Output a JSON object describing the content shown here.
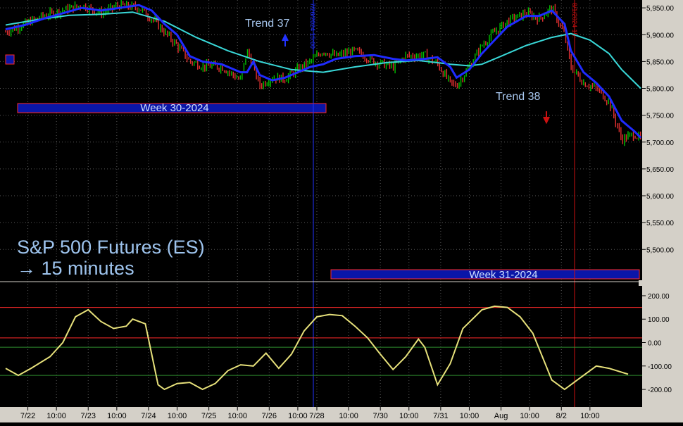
{
  "colors": {
    "background": "#000000",
    "grid": "#5a5a5a",
    "axis_panel": "#d4d0c8",
    "price_up": "#00c000",
    "price_down": "#e03030",
    "fast_ma": "#1f2bff",
    "slow_ma": "#39d8d8",
    "oscillator": "#e6e07a",
    "level_red": "#ff2a2a",
    "level_green": "#2e8b2e",
    "week_box_fill": "#0a16a8",
    "week_box_border": "#ff2a2a",
    "marker_blue": "#2233ff",
    "marker_red": "#cc1111",
    "title_text": "#9ec4ee",
    "annotation_text": "#a8c8f0"
  },
  "chart_data": [
    {
      "id": "price",
      "type": "line",
      "title": "S&P 500 Futures (ES)",
      "subtitle": "→ 15 minutes",
      "ylim": [
        5440,
        5962
      ],
      "yticks": [
        5500,
        5550,
        5600,
        5650,
        5700,
        5750,
        5800,
        5850,
        5900,
        5950
      ],
      "ytick_labels": [
        "5,500.00",
        "5,550.00",
        "5,600.00",
        "5,650.00",
        "5,700.00",
        "5,750.00",
        "5,800.00",
        "5,850.00",
        "5,900.00",
        "5,950.00"
      ],
      "xlim": [
        0,
        100
      ],
      "series": [
        {
          "key": "fast",
          "values": [
            [
              0,
              5910
            ],
            [
              3,
              5918
            ],
            [
              6,
              5930
            ],
            [
              9,
              5940
            ],
            [
              12,
              5950
            ],
            [
              15,
              5945
            ],
            [
              18,
              5950
            ],
            [
              21,
              5955
            ],
            [
              23,
              5945
            ],
            [
              25,
              5920
            ],
            [
              27,
              5900
            ],
            [
              29,
              5860
            ],
            [
              31,
              5850
            ],
            [
              34,
              5845
            ],
            [
              37,
              5830
            ],
            [
              38,
              5830
            ],
            [
              39,
              5850
            ],
            [
              40,
              5825
            ],
            [
              42,
              5815
            ],
            [
              44,
              5820
            ],
            [
              46,
              5830
            ],
            [
              48,
              5840
            ],
            [
              50,
              5845
            ],
            [
              52,
              5855
            ],
            [
              55,
              5860
            ],
            [
              58,
              5862
            ],
            [
              61,
              5855
            ],
            [
              63,
              5852
            ],
            [
              66,
              5855
            ],
            [
              68,
              5858
            ],
            [
              70,
              5840
            ],
            [
              71,
              5820
            ],
            [
              73,
              5835
            ],
            [
              75,
              5865
            ],
            [
              77,
              5890
            ],
            [
              79,
              5915
            ],
            [
              82,
              5935
            ],
            [
              84,
              5935
            ],
            [
              86,
              5945
            ],
            [
              88,
              5920
            ],
            [
              89,
              5870
            ],
            [
              91,
              5830
            ],
            [
              93,
              5810
            ],
            [
              95,
              5785
            ],
            [
              97,
              5740
            ],
            [
              99,
              5720
            ],
            [
              100,
              5708
            ]
          ]
        },
        {
          "key": "slow",
          "values": [
            [
              0,
              5918
            ],
            [
              5,
              5928
            ],
            [
              10,
              5936
            ],
            [
              15,
              5938
            ],
            [
              20,
              5942
            ],
            [
              25,
              5925
            ],
            [
              30,
              5895
            ],
            [
              35,
              5870
            ],
            [
              40,
              5850
            ],
            [
              45,
              5835
            ],
            [
              50,
              5830
            ],
            [
              55,
              5840
            ],
            [
              60,
              5848
            ],
            [
              65,
              5852
            ],
            [
              70,
              5845
            ],
            [
              73,
              5842
            ],
            [
              75,
              5845
            ],
            [
              78,
              5860
            ],
            [
              82,
              5880
            ],
            [
              86,
              5895
            ],
            [
              89,
              5902
            ],
            [
              92,
              5890
            ],
            [
              95,
              5865
            ],
            [
              97,
              5835
            ],
            [
              100,
              5800
            ]
          ]
        }
      ],
      "candle_path": [
        [
          0,
          5905
        ],
        [
          3,
          5920
        ],
        [
          6,
          5935
        ],
        [
          9,
          5945
        ],
        [
          12,
          5955
        ],
        [
          15,
          5940
        ],
        [
          18,
          5955
        ],
        [
          21,
          5950
        ],
        [
          23,
          5930
        ],
        [
          25,
          5905
        ],
        [
          27,
          5880
        ],
        [
          29,
          5850
        ],
        [
          31,
          5842
        ],
        [
          34,
          5840
        ],
        [
          37,
          5815
        ],
        [
          38,
          5870
        ],
        [
          39,
          5840
        ],
        [
          40,
          5805
        ],
        [
          42,
          5820
        ],
        [
          44,
          5818
        ],
        [
          46,
          5835
        ],
        [
          48,
          5850
        ],
        [
          50,
          5870
        ],
        [
          52,
          5860
        ],
        [
          55,
          5870
        ],
        [
          58,
          5850
        ],
        [
          61,
          5840
        ],
        [
          63,
          5860
        ],
        [
          66,
          5862
        ],
        [
          68,
          5845
        ],
        [
          70,
          5810
        ],
        [
          71,
          5805
        ],
        [
          73,
          5840
        ],
        [
          75,
          5880
        ],
        [
          77,
          5905
        ],
        [
          79,
          5925
        ],
        [
          82,
          5940
        ],
        [
          84,
          5930
        ],
        [
          86,
          5950
        ],
        [
          88,
          5900
        ],
        [
          89,
          5840
        ],
        [
          91,
          5810
        ],
        [
          93,
          5800
        ],
        [
          95,
          5775
        ],
        [
          97,
          5705
        ],
        [
          99,
          5715
        ],
        [
          100,
          5705
        ]
      ]
    },
    {
      "id": "oscillator",
      "type": "line",
      "ylim": [
        -275,
        245
      ],
      "yticks": [
        -200,
        -100,
        0,
        100,
        200
      ],
      "ytick_labels": [
        "-200.00",
        "-100.00",
        "0.00",
        "100.00",
        "200.00"
      ],
      "levels_red": [
        150,
        20
      ],
      "levels_green": [
        -20,
        -140
      ],
      "xlim": [
        0,
        100
      ],
      "values": [
        [
          0,
          -110
        ],
        [
          2,
          -140
        ],
        [
          4,
          -110
        ],
        [
          7,
          -60
        ],
        [
          9,
          0
        ],
        [
          11,
          110
        ],
        [
          13,
          140
        ],
        [
          15,
          90
        ],
        [
          17,
          60
        ],
        [
          19,
          70
        ],
        [
          20,
          100
        ],
        [
          22,
          80
        ],
        [
          24,
          -180
        ],
        [
          25,
          -200
        ],
        [
          27,
          -175
        ],
        [
          29,
          -170
        ],
        [
          31,
          -200
        ],
        [
          33,
          -175
        ],
        [
          35,
          -120
        ],
        [
          37,
          -95
        ],
        [
          39,
          -100
        ],
        [
          41,
          -45
        ],
        [
          43,
          -110
        ],
        [
          45,
          -50
        ],
        [
          47,
          50
        ],
        [
          49,
          110
        ],
        [
          51,
          120
        ],
        [
          53,
          115
        ],
        [
          55,
          70
        ],
        [
          57,
          20
        ],
        [
          59,
          -50
        ],
        [
          61,
          -115
        ],
        [
          63,
          -60
        ],
        [
          65,
          15
        ],
        [
          66,
          -20
        ],
        [
          68,
          -180
        ],
        [
          70,
          -90
        ],
        [
          72,
          60
        ],
        [
          75,
          140
        ],
        [
          77,
          155
        ],
        [
          79,
          150
        ],
        [
          81,
          110
        ],
        [
          83,
          40
        ],
        [
          86,
          -160
        ],
        [
          88,
          -200
        ],
        [
          90,
          -160
        ],
        [
          93,
          -100
        ],
        [
          95,
          -110
        ],
        [
          98,
          -135
        ]
      ]
    }
  ],
  "x_axis": {
    "labels": [
      "7/22",
      "10:00",
      "7/23",
      "10:00",
      "7/24",
      "10:00",
      "7/25",
      "10:00",
      "7/26",
      "10:00",
      "7/28",
      "10:00",
      "7/30",
      "10:00",
      "7/31",
      "10:00",
      "Aug",
      "10:00",
      "8/2",
      "10:00"
    ],
    "positions": [
      3.5,
      8,
      13,
      17.5,
      22.5,
      27,
      32,
      36.5,
      41.5,
      46,
      49,
      54,
      59,
      63.5,
      68.5,
      73,
      78,
      82.5,
      87.5,
      92
    ]
  },
  "annotations": {
    "trend37": "Trend 37",
    "trend38": "Trend 38",
    "week30": "Week 30-2024",
    "week31": "Week 31-2024",
    "marker_blue_text": "7/26/2024 15:00",
    "marker_red_text": "8/1/2024 15:",
    "title_line1": "S&P 500 Futures (ES)",
    "title_line2": "→ 15 minutes"
  }
}
